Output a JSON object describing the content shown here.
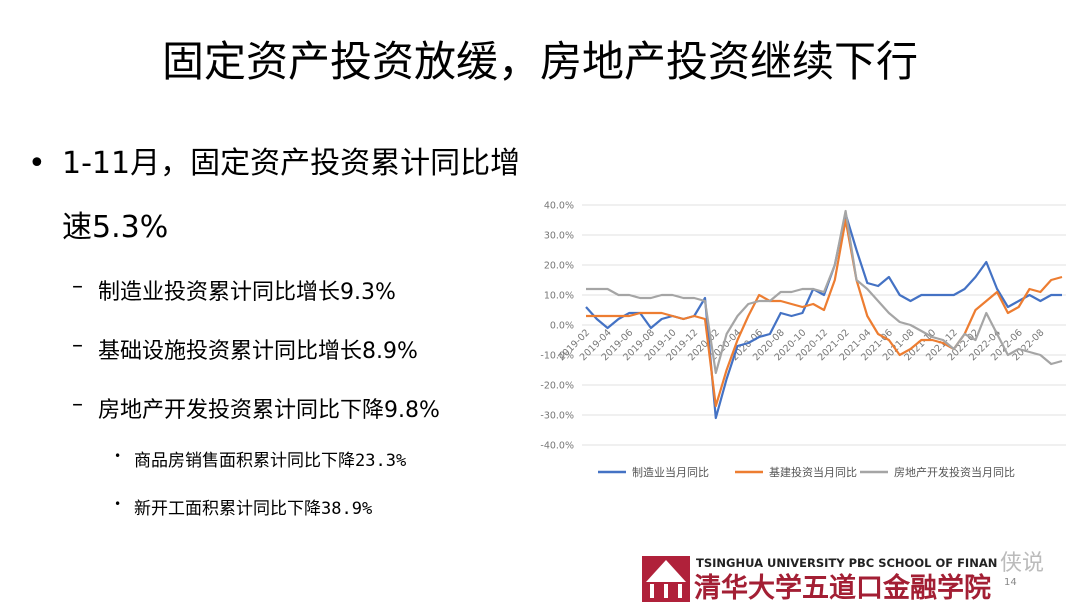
{
  "title": "固定资产投资放缓，房地产投资继续下行",
  "main_bullet": "1-11月，固定资产投资累计同比增速5.3%",
  "sub_bullets": [
    "制造业投资累计同比增长9.3%",
    "基础设施投资累计同比增长8.9%",
    "房地产开发投资累计同比下降9.8%"
  ],
  "sub_sub_bullets": [
    "商品房销售面积累计同比下降23.3%",
    "新开工面积累计同比下降38.9%"
  ],
  "footer": {
    "school_en": "TSINGHUA UNIVERSITY PBC SCHOOL OF FINAN",
    "school_cn": "清华大学五道口金融学院",
    "watermark": "侠说",
    "page": "14"
  },
  "chart_data": {
    "type": "line",
    "categories": [
      "2019-02",
      null,
      "2019-04",
      null,
      "2019-06",
      null,
      "2019-08",
      null,
      "2019-10",
      null,
      "2019-12",
      null,
      "2020-02",
      null,
      "2020-04",
      null,
      "2020-06",
      null,
      "2020-08",
      null,
      "2020-10",
      null,
      "2020-12",
      null,
      "2021-02",
      null,
      "2021-04",
      null,
      "2021-06",
      null,
      "2021-08",
      null,
      "2021-10",
      null,
      "2021-12",
      null,
      "2022-02",
      null,
      "2022-04",
      null,
      "2022-06",
      null,
      "2022-08",
      null,
      null
    ],
    "series": [
      {
        "name": "制造业当月同比",
        "color": "#4472c4",
        "values": [
          6,
          2,
          -1,
          2,
          4,
          4,
          -1,
          2,
          3,
          2,
          3,
          9,
          -31,
          -18,
          -7,
          -6,
          -4,
          -3,
          4,
          3,
          4,
          12,
          10,
          20,
          37,
          25,
          14,
          13,
          16,
          10,
          8,
          10,
          10,
          10,
          10,
          12,
          16,
          21,
          12,
          6,
          8,
          10,
          8,
          10,
          10
        ]
      },
      {
        "name": "基建投资当月同比",
        "color": "#ed7d31",
        "values": [
          3,
          3,
          3,
          3,
          3,
          4,
          4,
          4,
          3,
          2,
          3,
          2,
          -27,
          -15,
          -5,
          3,
          10,
          8,
          8,
          7,
          6,
          7,
          5,
          15,
          35,
          15,
          3,
          -3,
          -5,
          -10,
          -8,
          -5,
          -5,
          -6,
          -8,
          -3,
          5,
          8,
          11,
          4,
          6,
          12,
          11,
          15,
          16
        ]
      },
      {
        "name": "房地产开发投资当月同比",
        "color": "#a5a5a5",
        "values": [
          12,
          12,
          12,
          10,
          10,
          9,
          9,
          10,
          10,
          9,
          9,
          8,
          -16,
          -3,
          3,
          7,
          8,
          8,
          11,
          11,
          12,
          12,
          11,
          20,
          38,
          15,
          12,
          8,
          4,
          1,
          0,
          -2,
          -4,
          -5,
          -8,
          -3,
          -5,
          4,
          -3,
          -10,
          -8,
          -9,
          -10,
          -13,
          -12
        ]
      }
    ],
    "ylim": [
      -40,
      40
    ],
    "yticks": [
      {
        "value": -40,
        "label": "-40.0%"
      },
      {
        "value": -30,
        "label": "-30.0%"
      },
      {
        "value": -20,
        "label": "-20.0%"
      },
      {
        "value": -10,
        "label": "-10.0%"
      },
      {
        "value": 0,
        "label": "0.0%"
      },
      {
        "value": 10,
        "label": "10.0%"
      },
      {
        "value": 20,
        "label": "20.0%"
      },
      {
        "value": 30,
        "label": "30.0%"
      },
      {
        "value": 40,
        "label": "40.0%"
      }
    ],
    "grid": true,
    "legend": "bottom"
  }
}
